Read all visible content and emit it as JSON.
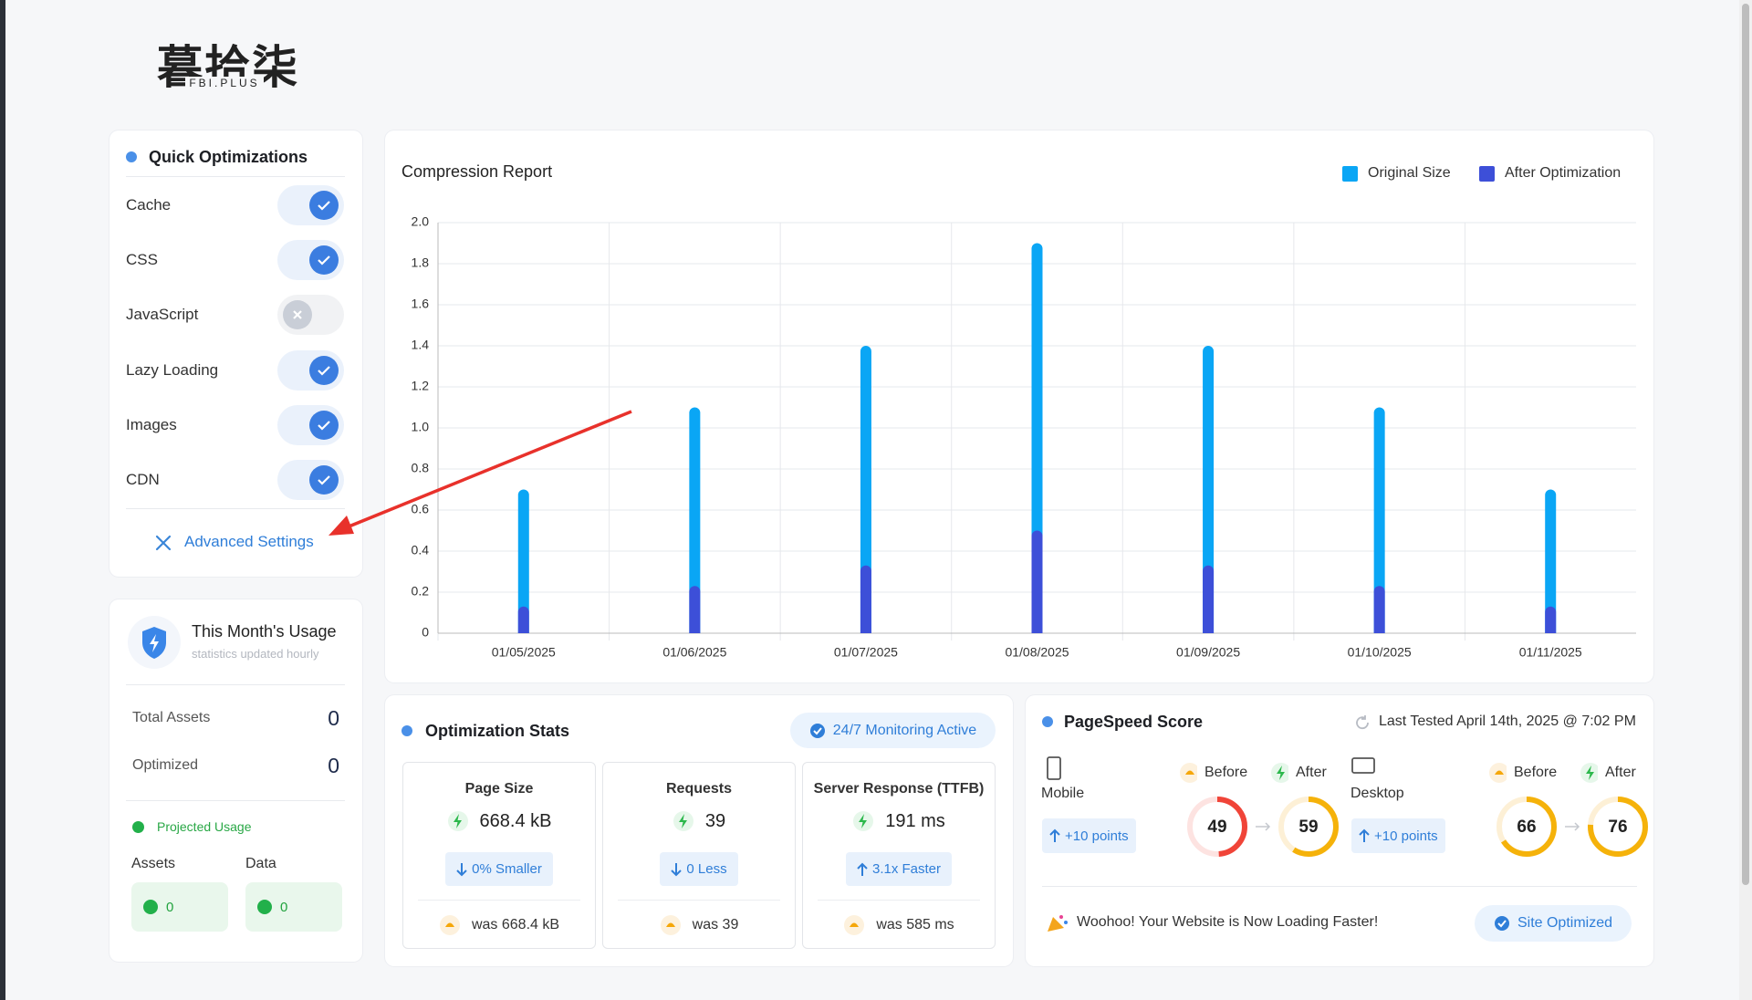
{
  "logo": {
    "name": "暮拾柒",
    "sub": "FBI.PLUS"
  },
  "quick_optimizations": {
    "title": "Quick Optimizations",
    "items": [
      {
        "label": "Cache",
        "enabled": true
      },
      {
        "label": "CSS",
        "enabled": true
      },
      {
        "label": "JavaScript",
        "enabled": false
      },
      {
        "label": "Lazy Loading",
        "enabled": true
      },
      {
        "label": "Images",
        "enabled": true
      },
      {
        "label": "CDN",
        "enabled": true
      }
    ],
    "advanced": "Advanced Settings"
  },
  "usage": {
    "title": "This Month's Usage",
    "subtitle": "statistics updated hourly",
    "rows": [
      {
        "label": "Total Assets",
        "value": 0
      },
      {
        "label": "Optimized",
        "value": 0
      }
    ],
    "projected": "Projected Usage",
    "boxes": [
      {
        "label": "Assets",
        "value": 0
      },
      {
        "label": "Data",
        "value": 0
      }
    ]
  },
  "chart_data": {
    "type": "bar",
    "title": "Compression Report",
    "categories": [
      "01/05/2025",
      "01/06/2025",
      "01/07/2025",
      "01/08/2025",
      "01/09/2025",
      "01/10/2025",
      "01/11/2025"
    ],
    "series": [
      {
        "name": "Original Size",
        "color": "#0aa6f5",
        "values": [
          0.7,
          1.1,
          1.4,
          1.9,
          1.4,
          1.1,
          0.7
        ]
      },
      {
        "name": "After Optimization",
        "color": "#3d4fd8",
        "values": [
          0.13,
          0.23,
          0.33,
          0.5,
          0.33,
          0.23,
          0.13
        ]
      }
    ],
    "ylim": [
      0,
      2
    ],
    "yticks": [
      0,
      0.2,
      0.4,
      0.6,
      0.8,
      {
        "value": 1,
        "label": "1.0"
      },
      1.2,
      1.4,
      1.6,
      1.8,
      {
        "value": 2,
        "label": "2.0"
      }
    ],
    "grid": true,
    "legend": "top-right"
  },
  "stats": {
    "title": "Optimization Stats",
    "badge": "24/7 Monitoring Active",
    "cards": [
      {
        "title": "Page Size",
        "value": "668.4 kB",
        "change": "0% Smaller",
        "direction": "down",
        "was": "was 668.4 kB"
      },
      {
        "title": "Requests",
        "value": "39",
        "change": "0 Less",
        "direction": "down",
        "was": "was 39"
      },
      {
        "title": "Server Response (TTFB)",
        "value": "191 ms",
        "change": "3.1x Faster",
        "direction": "up",
        "was": "was 585 ms"
      }
    ]
  },
  "pagespeed": {
    "title": "PageSpeed Score",
    "last_tested": "Last Tested April 14th, 2025 @ 7:02 PM",
    "devices": [
      {
        "name": "Mobile",
        "improvement": "+10 points",
        "before_label": "Before",
        "after_label": "After",
        "before": 49,
        "after": 59
      },
      {
        "name": "Desktop",
        "improvement": "+10 points",
        "before_label": "Before",
        "after_label": "After",
        "before": 66,
        "after": 76
      }
    ],
    "message": "Woohoo! Your Website is Now Loading Faster!",
    "status": "Site Optimized"
  }
}
